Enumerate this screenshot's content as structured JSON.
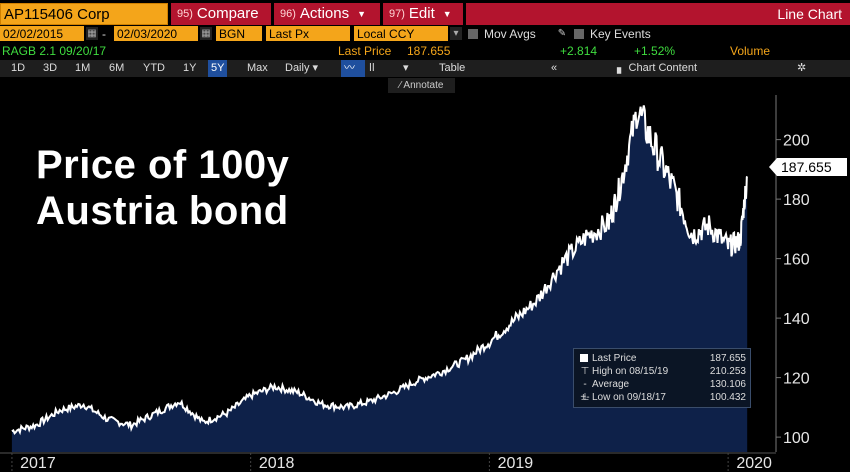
{
  "header": {
    "ticker": "AP115406 Corp",
    "compare_num": "95)",
    "compare_label": "Compare",
    "actions_num": "96)",
    "actions_label": "Actions",
    "edit_num": "97)",
    "edit_label": "Edit",
    "chart_type": "Line Chart"
  },
  "settings": {
    "start_date": "02/02/2015",
    "end_date": "02/03/2020",
    "dash": "-",
    "source": "BGN",
    "field": "Last Px",
    "currency": "Local CCY",
    "mov_avgs": "Mov Avgs",
    "key_events": "Key Events"
  },
  "price_info": {
    "rating": "RAGB 2.1 09/20/17",
    "last_price_label": "Last Price",
    "last_price": "187.655",
    "change": "+2.814",
    "change_pct": "+1.52%",
    "volume_label": "Volume"
  },
  "toolbar": {
    "ranges": [
      "1D",
      "3D",
      "1M",
      "6M",
      "YTD",
      "1Y",
      "5Y",
      "Max"
    ],
    "active_range": "5Y",
    "frequency": "Daily",
    "table": "Table",
    "chart_content": "Chart Content",
    "annotate": "Annotate"
  },
  "overlay": {
    "line1": "Price of 100y",
    "line2": "Austria bond"
  },
  "legend": {
    "last_price_label": "Last Price",
    "last_price_value": "187.655",
    "high_label": "High on 08/15/19",
    "high_value": "210.253",
    "average_label": "Average",
    "average_value": "130.106",
    "low_label": "Low on 09/18/17",
    "low_value": "100.432"
  },
  "last_tag": "187.655",
  "colors": {
    "accent_orange": "#f4a51a",
    "header_red": "#b3142e",
    "area_fill": "#0e2149",
    "line": "#ffffff",
    "positive": "#3fdc3f"
  },
  "chart_data": {
    "type": "area",
    "x_unit": "year",
    "x": [
      2017.0,
      2017.1,
      2017.2,
      2017.3,
      2017.4,
      2017.5,
      2017.6,
      2017.7,
      2017.8,
      2017.9,
      2018.0,
      2018.1,
      2018.2,
      2018.3,
      2018.4,
      2018.5,
      2018.6,
      2018.7,
      2018.8,
      2018.9,
      2019.0,
      2019.1,
      2019.2,
      2019.3,
      2019.4,
      2019.5,
      2019.55,
      2019.62,
      2019.7,
      2019.78,
      2019.85,
      2019.92,
      2020.0,
      2020.05,
      2020.08
    ],
    "values": [
      102,
      104,
      109,
      111,
      106,
      104,
      108,
      112,
      105,
      108,
      114,
      117,
      115,
      111,
      110,
      112,
      115,
      119,
      122,
      126,
      132,
      139,
      146,
      158,
      167,
      172,
      185,
      210,
      196,
      182,
      168,
      171,
      164,
      166,
      187.655
    ],
    "ylim": [
      95,
      215
    ],
    "y_ticks": [
      100,
      120,
      140,
      160,
      180,
      200
    ],
    "x_ticks": [
      "2017",
      "2018",
      "2019",
      "2020"
    ],
    "xlabel": "",
    "ylabel": "",
    "grid": false,
    "legend_position": "bottom-right"
  }
}
